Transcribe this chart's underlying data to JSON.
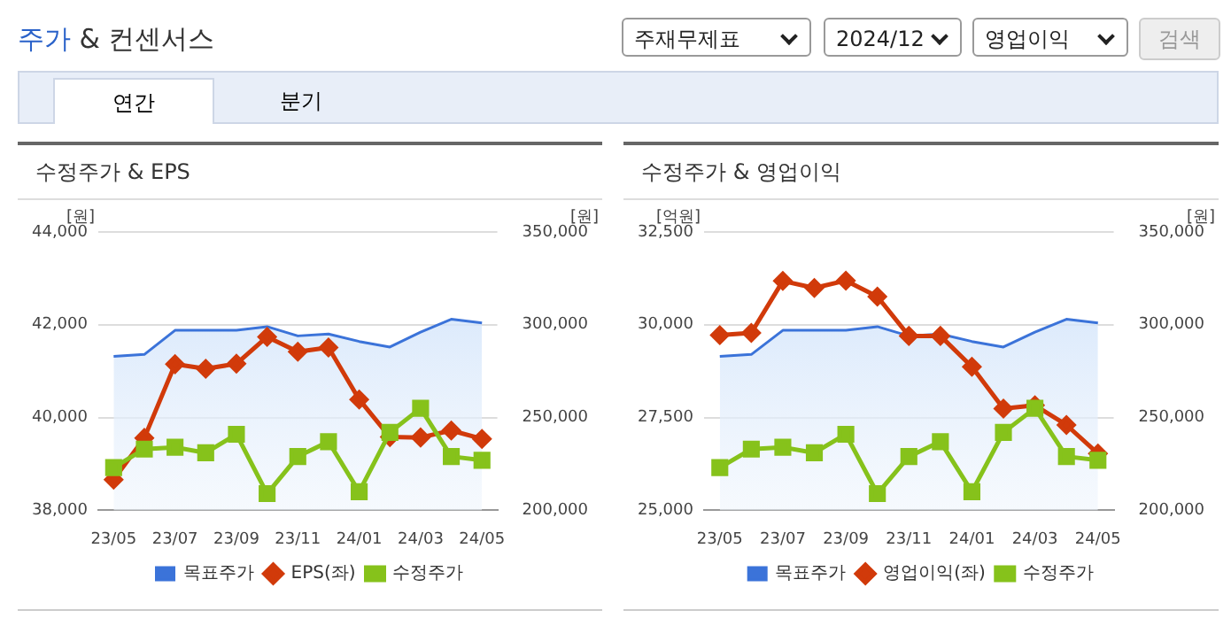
{
  "chart_data": [
    {
      "type": "line",
      "title": "수정주가 & EPS",
      "ylabel": "[원]",
      "y2label": "[원]",
      "annotations": [
        "주가 & 컨센서스",
        "주재무제표",
        "2024/12",
        "영업이익",
        "검색",
        "연간",
        "분기"
      ],
      "categories": [
        "23/05",
        null,
        "23/07",
        null,
        "23/09",
        null,
        "23/11",
        null,
        "24/01",
        null,
        "24/03",
        null,
        "24/05"
      ],
      "series": [
        {
          "name": "목표주가",
          "type": "area",
          "axis": "y2",
          "color": "#3b73d9",
          "marker": "none",
          "values": [
            283000,
            284000,
            297000,
            297000,
            297000,
            299000,
            294000,
            295000,
            291000,
            288000,
            296000,
            303000,
            301000
          ]
        },
        {
          "name": "EPS(좌)",
          "type": "line",
          "color": "#d13a0a",
          "marker": "diamond",
          "values": [
            38660,
            39560,
            41150,
            41050,
            41160,
            41740,
            41420,
            41510,
            40390,
            39580,
            39570,
            39720,
            39540
          ]
        },
        {
          "name": "수정주가",
          "type": "line",
          "axis": "y2",
          "color": "#86c21b",
          "marker": "square",
          "values": [
            223000,
            233000,
            234000,
            231000,
            241000,
            209000,
            229000,
            237000,
            210000,
            242000,
            255000,
            229000,
            227000
          ]
        }
      ],
      "ylim": [
        38000,
        44000
      ],
      "yticks": [
        {
          "value": 38000,
          "label": "38,000"
        },
        {
          "value": 40000,
          "label": "40,000"
        },
        {
          "value": 42000,
          "label": "42,000"
        },
        {
          "value": 44000,
          "label": "44,000"
        }
      ],
      "y2lim": [
        200000,
        350000
      ],
      "y2ticks": [
        {
          "value": 200000,
          "label": "200,000"
        },
        {
          "value": 250000,
          "label": "250,000"
        },
        {
          "value": 300000,
          "label": "300,000"
        },
        {
          "value": 350000,
          "label": "350,000"
        }
      ],
      "grid": "y",
      "legend": "bottom",
      "line_style": "solid"
    },
    {
      "type": "line",
      "title": "수정주가 & 영업이익",
      "ylabel": "[억원]",
      "y2label": "[원]",
      "categories": [
        "23/05",
        null,
        "23/07",
        null,
        "23/09",
        null,
        "23/11",
        null,
        "24/01",
        null,
        "24/03",
        null,
        "24/05"
      ],
      "series": [
        {
          "name": "목표주가",
          "type": "area",
          "axis": "y2",
          "color": "#3b73d9",
          "marker": "none",
          "values": [
            283000,
            284000,
            297000,
            297000,
            297000,
            299000,
            294000,
            295000,
            291000,
            288000,
            296000,
            303000,
            301000
          ]
        },
        {
          "name": "영업이익(좌)",
          "type": "line",
          "color": "#d13a0a",
          "marker": "diamond",
          "values": [
            29720,
            29780,
            31180,
            30990,
            31190,
            30760,
            29700,
            29700,
            28870,
            27740,
            27830,
            27300,
            26530
          ]
        },
        {
          "name": "수정주가",
          "type": "line",
          "axis": "y2",
          "color": "#86c21b",
          "marker": "square",
          "values": [
            223000,
            233000,
            234000,
            231000,
            241000,
            209000,
            229000,
            237000,
            210000,
            242000,
            255000,
            229000,
            227000
          ]
        }
      ],
      "ylim": [
        25000,
        32500
      ],
      "yticks": [
        {
          "value": 25000,
          "label": "25,000"
        },
        {
          "value": 27500,
          "label": "27,500"
        },
        {
          "value": 30000,
          "label": "30,000"
        },
        {
          "value": 32500,
          "label": "32,500"
        }
      ],
      "y2lim": [
        200000,
        350000
      ],
      "y2ticks": [
        {
          "value": 200000,
          "label": "200,000"
        },
        {
          "value": 250000,
          "label": "250,000"
        },
        {
          "value": 300000,
          "label": "300,000"
        },
        {
          "value": 350000,
          "label": "350,000"
        }
      ],
      "grid": "y",
      "legend": "bottom",
      "line_style": "solid"
    }
  ]
}
